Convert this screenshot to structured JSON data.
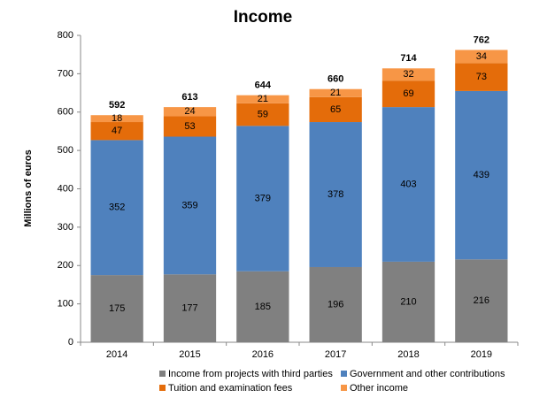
{
  "chart_data": {
    "type": "stacked_bar",
    "title": "Income",
    "y_label": "Millions of euros",
    "categories": [
      "2014",
      "2015",
      "2016",
      "2017",
      "2018",
      "2019"
    ],
    "series": [
      {
        "name": "Income from projects with third parties",
        "color": "#808080",
        "values": [
          175,
          177,
          185,
          196,
          210,
          216
        ]
      },
      {
        "name": "Government and other contributions",
        "color": "#4f81bd",
        "values": [
          352,
          359,
          379,
          378,
          403,
          439
        ]
      },
      {
        "name": "Tuition and examination fees",
        "color": "#e46c0a",
        "values": [
          47,
          53,
          59,
          65,
          69,
          73
        ]
      },
      {
        "name": "Other income",
        "color": "#f79646",
        "values": [
          18,
          24,
          21,
          21,
          32,
          34
        ]
      }
    ],
    "totals": [
      592,
      613,
      644,
      660,
      714,
      762
    ],
    "ylim": [
      0,
      800
    ],
    "yticks": [
      0,
      100,
      200,
      300,
      400,
      500,
      600,
      700,
      800
    ],
    "grid": false
  }
}
